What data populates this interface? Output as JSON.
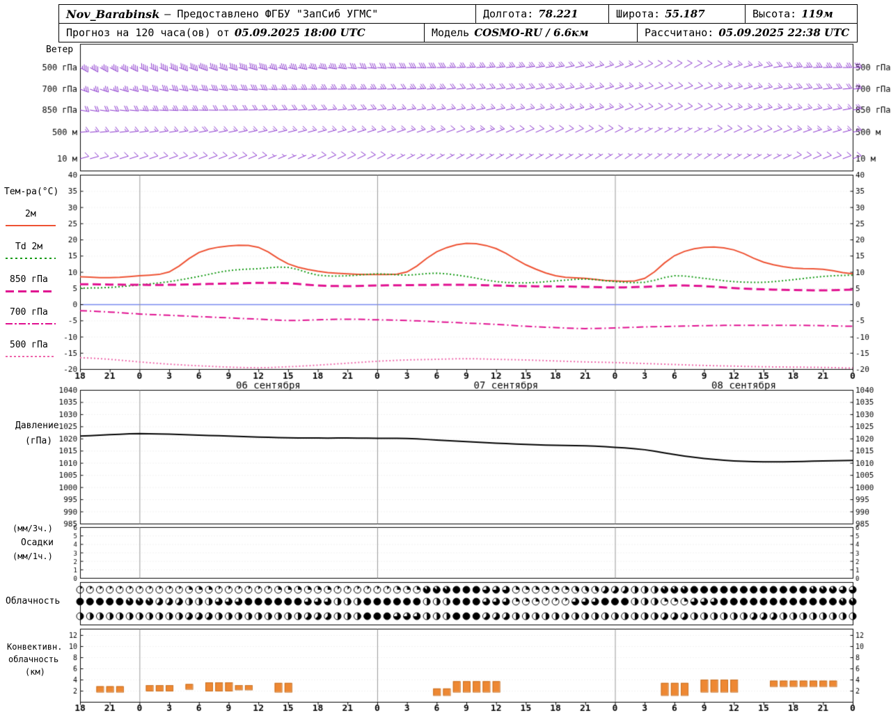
{
  "header": {
    "station": "Nov_Barabinsk",
    "provider": "— Предоставлено ФГБУ \"ЗапСиб УГМС\"",
    "lon_label": "Долгота:",
    "lon": "78.221",
    "lat_label": "Широта:",
    "lat": "55.187",
    "alt_label": "Высота:",
    "alt": "119м",
    "forecast_label": "Прогноз на 120 часа(ов) от",
    "forecast_time": "05.09.2025 18:00 UTC",
    "model_label": "Модель",
    "model": "COSMO-RU / 6.6км",
    "calc_label": "Рассчитано:",
    "calc_time": "05.09.2025 22:38 UTC"
  },
  "labels": {
    "wind": "Ветер",
    "temp_title": "Тем-ра(°C)",
    "t2m": "2м",
    "td2m": "Td 2м",
    "t850": "850 гПа",
    "t700": "700 гПа",
    "t500": "500 гПа",
    "pressure1": "Давление",
    "pressure2": "(гПа)",
    "precip1": "(мм/3ч.)",
    "precip2": "Осадки",
    "precip3": "(мм/1ч.)",
    "cloud": "Облачность",
    "conv1": "Конвективн.",
    "conv2": "облачность",
    "conv3": "(км)"
  },
  "colors": {
    "t2m": "#ee5233",
    "td2m": "#119911",
    "t850": "#e01090",
    "t700": "#e01090",
    "t500": "#ee66aa",
    "pressure": "#000000",
    "wind": "#8833cc",
    "convective": "#ee8833",
    "zero_line": "#7788ee",
    "frame": "#000000",
    "grid": "#e2e2e2",
    "midnight": "#999999"
  },
  "chart_data": [
    {
      "name": "wind",
      "type": "scatter",
      "unit": "м/с",
      "t_step_hours": 6,
      "levels": [
        {
          "label": "500 гПа",
          "dir": [
            300,
            295,
            290,
            285,
            280,
            275,
            270,
            265,
            260,
            250,
            240,
            250,
            265,
            270
          ],
          "speed": [
            18,
            20,
            22,
            20,
            18,
            16,
            15,
            14,
            12,
            8,
            5,
            8,
            12,
            15
          ]
        },
        {
          "label": "700 гПа",
          "dir": [
            290,
            285,
            280,
            275,
            270,
            268,
            265,
            262,
            258,
            252,
            248,
            252,
            260,
            265
          ],
          "speed": [
            14,
            15,
            16,
            15,
            13,
            12,
            12,
            11,
            10,
            8,
            6,
            8,
            10,
            12
          ]
        },
        {
          "label": "850 гПа",
          "dir": [
            280,
            275,
            272,
            268,
            265,
            262,
            260,
            258,
            255,
            250,
            245,
            250,
            255,
            260
          ],
          "speed": [
            10,
            12,
            12,
            11,
            10,
            10,
            9,
            9,
            8,
            7,
            5,
            7,
            8,
            10
          ]
        },
        {
          "label": "500 м",
          "dir": [
            265,
            262,
            260,
            258,
            255,
            252,
            250,
            248,
            246,
            244,
            242,
            246,
            250,
            255
          ],
          "speed": [
            8,
            9,
            10,
            9,
            8,
            8,
            7,
            7,
            6,
            5,
            4,
            6,
            7,
            8
          ]
        },
        {
          "label": "10 м",
          "dir": [
            255,
            252,
            250,
            248,
            246,
            244,
            242,
            240,
            240,
            238,
            236,
            240,
            245,
            250
          ],
          "speed": [
            5,
            6,
            6,
            5,
            5,
            5,
            4,
            4,
            4,
            3,
            3,
            4,
            5,
            5
          ]
        }
      ]
    },
    {
      "name": "temperature",
      "type": "line",
      "ylim": [
        -20,
        40
      ],
      "yticks": [
        40,
        35,
        30,
        25,
        20,
        15,
        10,
        5,
        0,
        -5,
        -10,
        -15,
        -20
      ],
      "t_step_hours": 3,
      "x_hour_labels": [
        "18",
        "21",
        "0",
        "3",
        "6",
        "9",
        "12",
        "15",
        "18",
        "21",
        "0",
        "3",
        "6",
        "9",
        "12",
        "15",
        "18",
        "21",
        "0",
        "3",
        "6",
        "9",
        "12",
        "15",
        "18",
        "21",
        "0"
      ],
      "date_labels": [
        "06 сентября",
        "07 сентября",
        "08 сентября"
      ],
      "series": [
        {
          "name": "2м",
          "style": "solid",
          "color_key": "t2m",
          "values": [
            8.5,
            8.2,
            8.8,
            10.0,
            16.0,
            18.0,
            17.6,
            12.5,
            10.2,
            9.4,
            9.2,
            10.0,
            16.2,
            18.8,
            17.2,
            12.2,
            8.8,
            8.0,
            7.2,
            8.0,
            15.0,
            17.6,
            16.8,
            13.0,
            11.2,
            10.8,
            9.4
          ]
        },
        {
          "name": "Td 2м",
          "style": "dot",
          "color_key": "td2m",
          "values": [
            5.0,
            5.2,
            6.0,
            7.0,
            8.6,
            10.4,
            11.0,
            11.4,
            9.0,
            8.8,
            9.4,
            9.0,
            9.6,
            8.6,
            7.0,
            6.6,
            7.2,
            7.8,
            7.0,
            6.8,
            8.8,
            8.0,
            7.0,
            6.8,
            7.6,
            8.6,
            9.0
          ]
        },
        {
          "name": "850 гПа",
          "style": "dash",
          "color_key": "t850",
          "values": [
            6.2,
            6.1,
            6.0,
            6.0,
            6.2,
            6.4,
            6.6,
            6.5,
            5.8,
            5.6,
            5.8,
            5.9,
            6.0,
            6.0,
            5.8,
            5.6,
            5.5,
            5.4,
            5.2,
            5.4,
            5.8,
            5.6,
            5.0,
            4.6,
            4.4,
            4.3,
            4.5
          ]
        },
        {
          "name": "700 гПа",
          "style": "dashdot",
          "color_key": "t700",
          "values": [
            -2.0,
            -2.4,
            -3.0,
            -3.4,
            -3.8,
            -4.2,
            -4.6,
            -5.0,
            -4.8,
            -4.6,
            -4.8,
            -5.0,
            -5.4,
            -5.8,
            -6.2,
            -6.8,
            -7.2,
            -7.5,
            -7.3,
            -7.0,
            -6.8,
            -6.6,
            -6.5,
            -6.5,
            -6.5,
            -6.6,
            -6.8
          ]
        },
        {
          "name": "500 гПа",
          "style": "dot",
          "color_key": "t500",
          "values": [
            -16.5,
            -17.0,
            -17.8,
            -18.5,
            -19.0,
            -19.4,
            -19.6,
            -19.3,
            -18.8,
            -18.2,
            -17.6,
            -17.2,
            -17.0,
            -16.8,
            -17.0,
            -17.2,
            -17.5,
            -17.8,
            -18.0,
            -18.3,
            -18.6,
            -18.9,
            -19.1,
            -19.3,
            -19.4,
            -19.5,
            -19.7
          ]
        }
      ]
    },
    {
      "name": "pressure",
      "type": "line",
      "ylim": [
        985,
        1040
      ],
      "yticks": [
        1040,
        1035,
        1030,
        1025,
        1020,
        1015,
        1010,
        1005,
        1000,
        995,
        990,
        985
      ],
      "t_step_hours": 3,
      "series": [
        {
          "name": "Давление гПа",
          "style": "solid",
          "color_key": "pressure",
          "values": [
            1021.0,
            1021.6,
            1022.0,
            1021.8,
            1021.4,
            1021.0,
            1020.6,
            1020.3,
            1020.2,
            1020.2,
            1020.1,
            1020.0,
            1019.4,
            1018.7,
            1018.1,
            1017.6,
            1017.2,
            1017.0,
            1016.4,
            1015.4,
            1013.4,
            1011.8,
            1010.8,
            1010.4,
            1010.5,
            1010.8,
            1011.0
          ]
        }
      ]
    },
    {
      "name": "precipitation",
      "type": "bar",
      "yticks": [
        6,
        5,
        4,
        3,
        2,
        1,
        0
      ],
      "t_step_hours": 3,
      "values_mm_3h": [
        0,
        0,
        0,
        0,
        0,
        0,
        0,
        0,
        0,
        0,
        0,
        0,
        0,
        0,
        0,
        0,
        0,
        0,
        0,
        0,
        0,
        0,
        0,
        0,
        0,
        0,
        0
      ]
    },
    {
      "name": "cloud_cover",
      "type": "heatmap",
      "okta_max": 8,
      "t_step_hours": 3,
      "rows": [
        [
          1,
          1,
          1,
          1,
          2,
          1,
          1,
          2,
          2,
          1,
          1,
          2,
          7,
          8,
          6,
          2,
          2,
          3,
          5,
          4,
          7,
          8,
          8,
          8,
          8,
          7,
          6
        ],
        [
          8,
          8,
          7,
          5,
          4,
          6,
          8,
          8,
          6,
          4,
          8,
          8,
          4,
          8,
          6,
          2,
          1,
          6,
          8,
          4,
          2,
          6,
          8,
          8,
          8,
          8,
          7
        ],
        [
          4,
          4,
          4,
          4,
          5,
          4,
          4,
          4,
          5,
          4,
          8,
          6,
          4,
          8,
          5,
          4,
          4,
          4,
          4,
          4,
          5,
          4,
          4,
          5,
          4,
          4,
          4
        ]
      ]
    },
    {
      "name": "convective_clouds",
      "type": "bar",
      "unit": "км",
      "yticks": [
        12,
        10,
        8,
        6,
        4,
        2
      ],
      "segments": [
        {
          "t0": 2,
          "t1": 4.5,
          "base": 1.8,
          "top": 2.8
        },
        {
          "t0": 7,
          "t1": 9.5,
          "base": 2.0,
          "top": 3.0
        },
        {
          "t0": 10.3,
          "t1": 11.3,
          "base": 2.3,
          "top": 3.2
        },
        {
          "t0": 13,
          "t1": 15.5,
          "base": 2.0,
          "top": 3.5
        },
        {
          "t0": 16,
          "t1": 17.5,
          "base": 2.2,
          "top": 3.0
        },
        {
          "t0": 20,
          "t1": 21.5,
          "base": 1.8,
          "top": 3.4
        },
        {
          "t0": 35.5,
          "t1": 37,
          "base": 1.2,
          "top": 2.4
        },
        {
          "t0": 37.3,
          "t1": 42.3,
          "base": 1.8,
          "top": 3.7
        },
        {
          "t0": 58.3,
          "t1": 61,
          "base": 1.2,
          "top": 3.4
        },
        {
          "t0": 62.3,
          "t1": 66.8,
          "base": 1.8,
          "top": 4.0
        },
        {
          "t0": 69.3,
          "t1": 76,
          "base": 2.8,
          "top": 3.8
        }
      ]
    }
  ]
}
